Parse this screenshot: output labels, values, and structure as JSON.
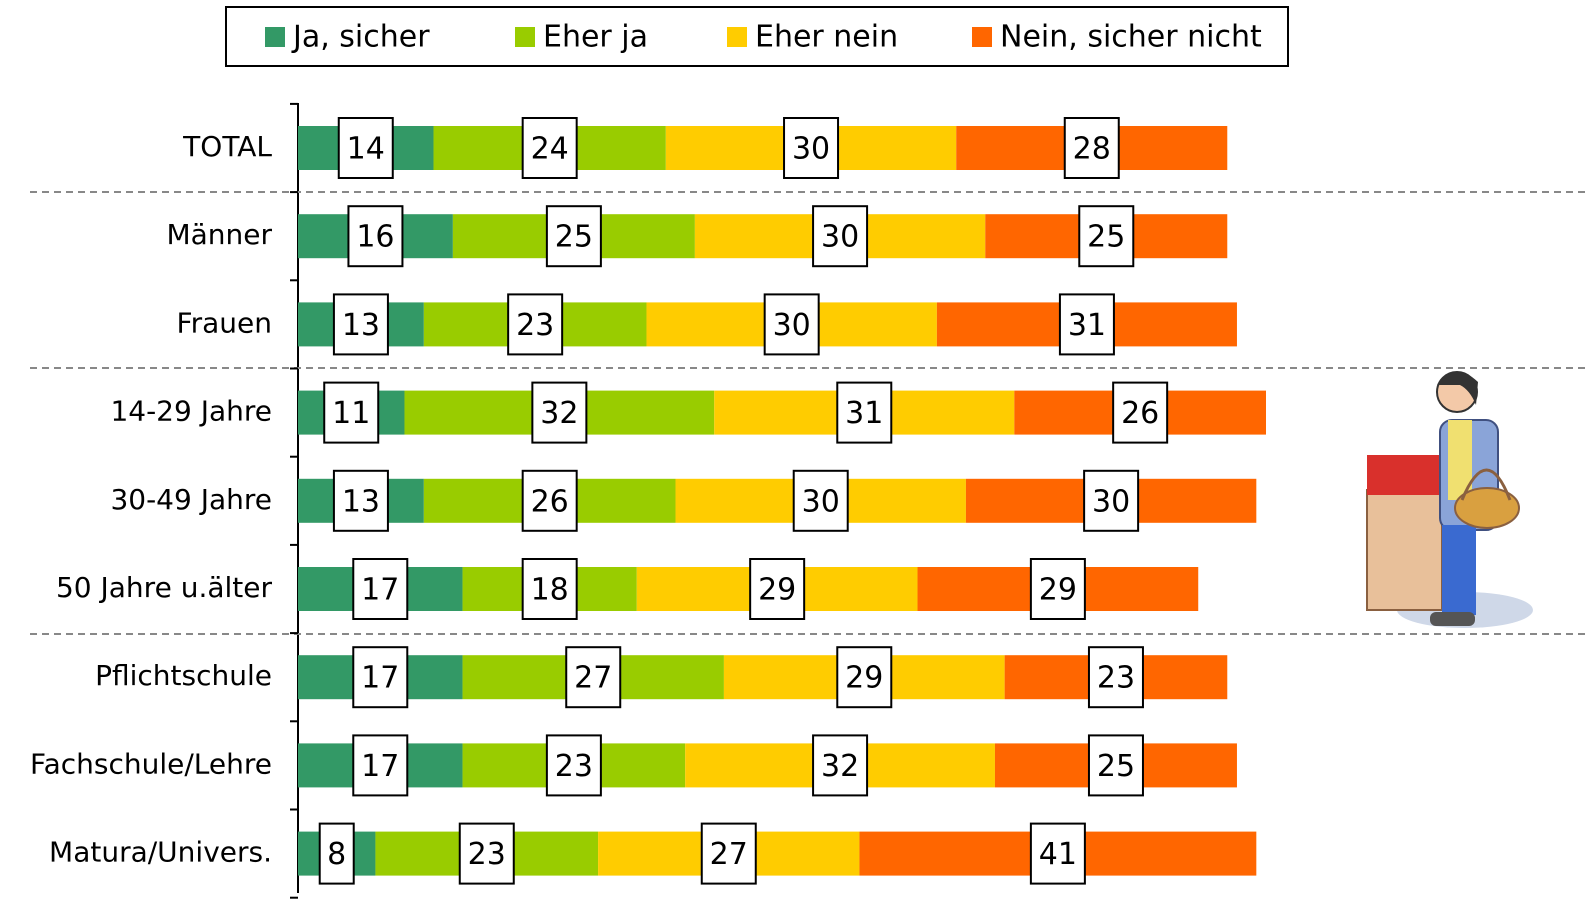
{
  "chart_data": {
    "type": "stacked-bar-horizontal",
    "categories": [
      "TOTAL",
      "Männer",
      "Frauen",
      "14-29 Jahre",
      "30-49 Jahre",
      "50 Jahre u.älter",
      "Pflichtschule",
      "Fachschule/Lehre",
      "Matura/Univers."
    ],
    "series": [
      {
        "name": "Ja, sicher",
        "color": "#339966",
        "values": [
          14,
          16,
          13,
          11,
          13,
          17,
          17,
          17,
          8
        ]
      },
      {
        "name": "Eher ja",
        "color": "#99cc00",
        "values": [
          24,
          25,
          23,
          32,
          26,
          18,
          27,
          23,
          23
        ]
      },
      {
        "name": "Eher nein",
        "color": "#ffcc00",
        "values": [
          30,
          30,
          30,
          31,
          30,
          29,
          29,
          32,
          27
        ]
      },
      {
        "name": "Nein, sicher nicht",
        "color": "#ff6600",
        "values": [
          28,
          25,
          31,
          26,
          30,
          29,
          23,
          25,
          41
        ]
      }
    ],
    "legend": "top"
  }
}
